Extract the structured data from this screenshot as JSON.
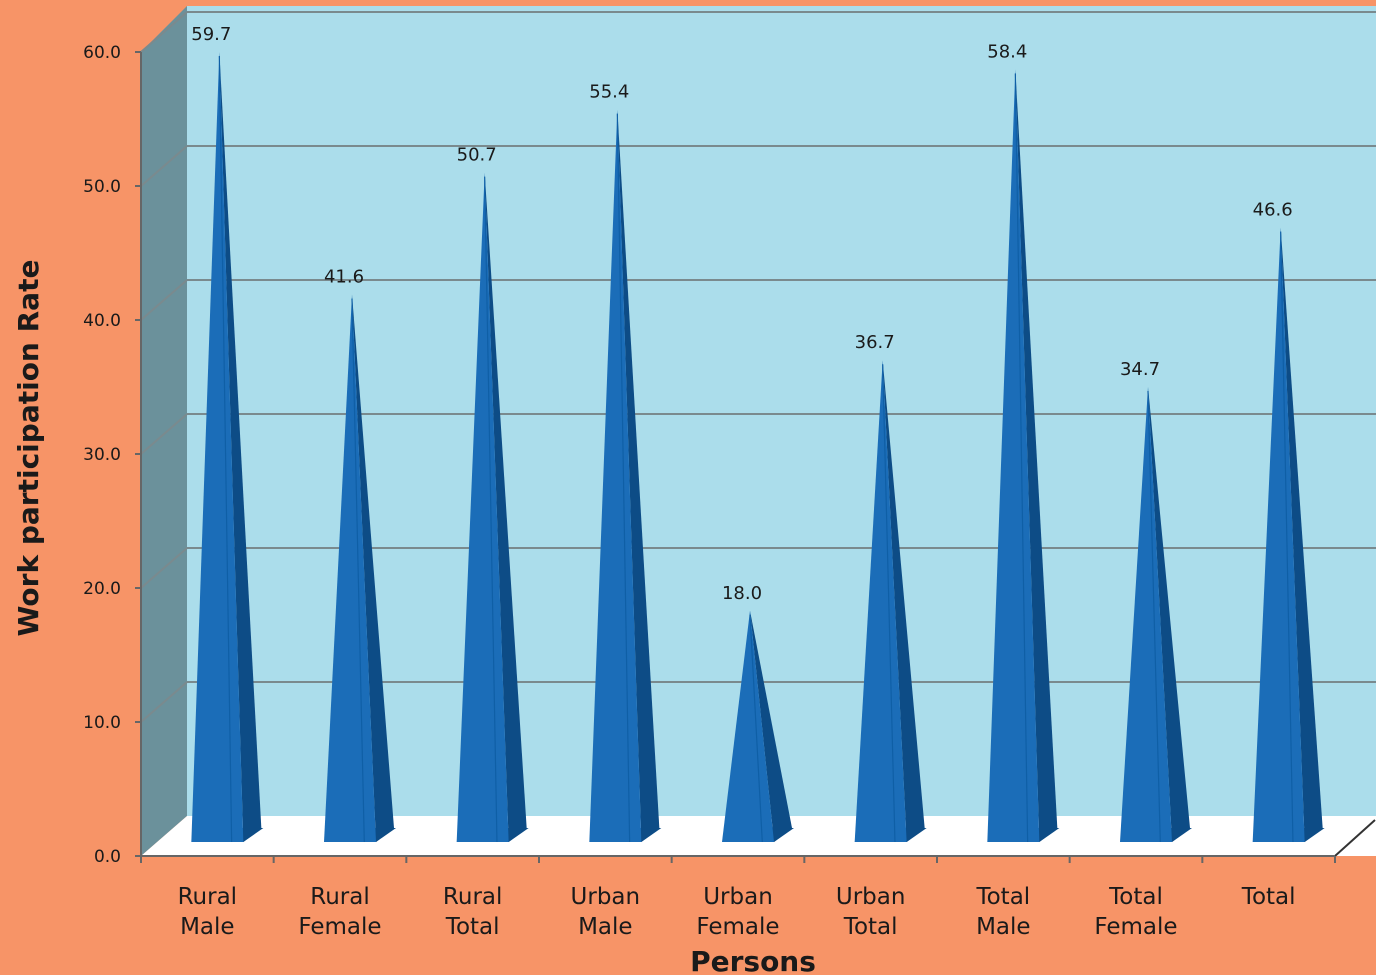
{
  "chart_data": {
    "type": "bar",
    "mark_shape": "3d-cone",
    "categories": [
      [
        "Rural",
        "Male"
      ],
      [
        "Rural",
        "Female"
      ],
      [
        "Rural",
        "Total"
      ],
      [
        "Urban",
        "Male"
      ],
      [
        "Urban",
        "Female"
      ],
      [
        "Urban",
        "Total"
      ],
      [
        "Total",
        "Male"
      ],
      [
        "Total",
        "Female"
      ],
      [
        "Total"
      ]
    ],
    "values": [
      59.7,
      41.6,
      50.7,
      55.4,
      18.0,
      36.7,
      58.4,
      34.7,
      46.6
    ],
    "data_labels": [
      "59.7",
      "41.6",
      "50.7",
      "55.4",
      "18.0",
      "36.7",
      "58.4",
      "34.7",
      "46.6"
    ],
    "xlabel": "Persons",
    "ylabel": "Work participation Rate",
    "ylim": [
      0,
      60
    ],
    "yticks": [
      0,
      10,
      20,
      30,
      40,
      50,
      60
    ],
    "ytick_labels": [
      "0.0",
      "10.0",
      "20.0",
      "30.0",
      "40.0",
      "50.0",
      "60.0"
    ],
    "grid": true,
    "legend": "none"
  },
  "colors": {
    "background": "#F79467",
    "plot_back_wall": "#ABDDEB",
    "plot_side_wall": "#6B919B",
    "floor": "#FFFFFF",
    "gridline": "#7A8A8E",
    "cone_front": "#1B6DB8",
    "cone_side": "#0D4C86",
    "axis": "#666666"
  }
}
